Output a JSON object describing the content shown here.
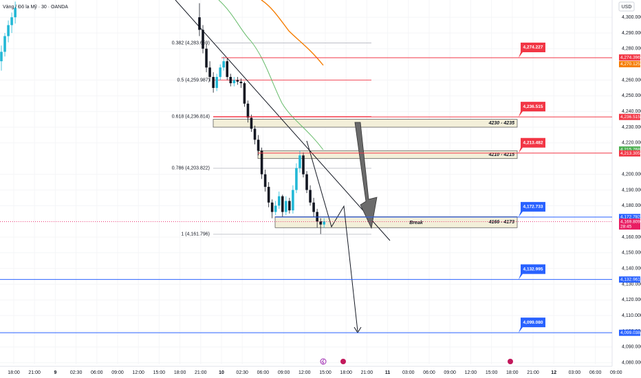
{
  "chart_data": {
    "type": "candlestick",
    "title": "Vàng / Đô la Mỹ · 30 · OANDA",
    "currency": "USD",
    "ylim": [
      4079,
      4311
    ],
    "yticks": [
      {
        "value": 4080,
        "label": "4,080.000"
      },
      {
        "value": 4090,
        "label": "4,090.000"
      },
      {
        "value": 4100,
        "label": "4,100.000"
      },
      {
        "value": 4110,
        "label": "4,110.000"
      },
      {
        "value": 4120,
        "label": "4,120.000"
      },
      {
        "value": 4130,
        "label": "4,130.000"
      },
      {
        "value": 4140,
        "label": "4,140.000"
      },
      {
        "value": 4150,
        "label": "4,150.000"
      },
      {
        "value": 4160,
        "label": "4,160.000"
      },
      {
        "value": 4180,
        "label": "4,180.000"
      },
      {
        "value": 4190,
        "label": "4,190.000"
      },
      {
        "value": 4200,
        "label": "4,200.000"
      },
      {
        "value": 4220,
        "label": "4,220.000"
      },
      {
        "value": 4230,
        "label": "4,230.000"
      },
      {
        "value": 4240,
        "label": "4,240.000"
      },
      {
        "value": 4250,
        "label": "4,250.000"
      },
      {
        "value": 4260,
        "label": "4,260.000"
      },
      {
        "value": 4280,
        "label": "4,280.000"
      },
      {
        "value": 4290,
        "label": "4,290.000"
      },
      {
        "value": 4300,
        "label": "4,300.000"
      }
    ],
    "categories": [
      "18:00",
      "21:00",
      "9",
      "02:30",
      "06:00",
      "09:00",
      "12:00",
      "15:00",
      "18:00",
      "21:00",
      "10",
      "02:30",
      "06:00",
      "09:00",
      "12:00",
      "15:00",
      "18:00",
      "21:00",
      "11",
      "03:00",
      "06:00",
      "09:00",
      "12:00",
      "15:00",
      "18:00",
      "21:00",
      "12",
      "03:00",
      "06:00",
      "09:00"
    ],
    "up_color": "#22b8d6",
    "down_color": "#131722",
    "candles_left": [
      [
        4272,
        4282,
        4266,
        4278
      ],
      [
        4278,
        4290,
        4275,
        4288
      ],
      [
        4288,
        4298,
        4284,
        4295
      ],
      [
        4295,
        4303,
        4290,
        4300
      ],
      [
        4300,
        4310,
        4296,
        4306
      ]
    ],
    "candles_right": [
      [
        4300,
        4309,
        4288,
        4292
      ],
      [
        4292,
        4295,
        4277,
        4280
      ],
      [
        4280,
        4283,
        4265,
        4268
      ],
      [
        4268,
        4272,
        4259,
        4262
      ],
      [
        4262,
        4265,
        4252,
        4255
      ],
      [
        4255,
        4264,
        4253,
        4262
      ],
      [
        4262,
        4270,
        4260,
        4268
      ],
      [
        4268,
        4275,
        4266,
        4272
      ],
      [
        4272,
        4274,
        4260,
        4262
      ],
      [
        4262,
        4264,
        4256,
        4258
      ],
      [
        4258,
        4262,
        4256,
        4260
      ],
      [
        4260,
        4262,
        4257,
        4259
      ],
      [
        4259,
        4261,
        4255,
        4258
      ],
      [
        4258,
        4259,
        4243,
        4245
      ],
      [
        4245,
        4247,
        4233,
        4236
      ],
      [
        4236,
        4238,
        4227,
        4229
      ],
      [
        4229,
        4231,
        4219,
        4222
      ],
      [
        4222,
        4225,
        4212,
        4215
      ],
      [
        4215,
        4217,
        4197,
        4200
      ],
      [
        4200,
        4203,
        4189,
        4192
      ],
      [
        4192,
        4195,
        4179,
        4182
      ],
      [
        4182,
        4184,
        4172,
        4176
      ],
      [
        4176,
        4183,
        4174,
        4180
      ],
      [
        4180,
        4189,
        4178,
        4186
      ],
      [
        4186,
        4187,
        4173,
        4176
      ],
      [
        4176,
        4186,
        4174,
        4183
      ],
      [
        4183,
        4185,
        4175,
        4177
      ],
      [
        4177,
        4193,
        4175,
        4190
      ],
      [
        4190,
        4207,
        4188,
        4204
      ],
      [
        4204,
        4215,
        4201,
        4212
      ],
      [
        4212,
        4214,
        4198,
        4200
      ],
      [
        4200,
        4202,
        4188,
        4190
      ],
      [
        4190,
        4193,
        4180,
        4182
      ],
      [
        4182,
        4185,
        4173,
        4176
      ],
      [
        4176,
        4178,
        4166,
        4170
      ],
      [
        4170,
        4172,
        4162,
        4168
      ],
      [
        4168,
        4172,
        4166,
        4170
      ]
    ],
    "fib_levels": [
      {
        "value": 4283.659,
        "label": "0.382 (4,283.659)",
        "color": "#787b86"
      },
      {
        "value": 4259.987,
        "label": "0.5 (4,259.987)",
        "color": "#f23645"
      },
      {
        "value": 4236.814,
        "label": "0.618 (4,236.814)",
        "color": "#f23645"
      },
      {
        "value": 4203.822,
        "label": "0.786 (4,203.822)",
        "color": "#787b86"
      },
      {
        "value": 4161.796,
        "label": "1 (4,161.796)",
        "color": "#787b86"
      }
    ],
    "zones": [
      {
        "low": 4230,
        "high": 4235,
        "label": "4230 - 4235"
      },
      {
        "low": 4210,
        "high": 4215,
        "label": "4210 - 4215"
      },
      {
        "low": 4166,
        "high": 4173,
        "label": "4166 - 4173"
      }
    ],
    "zone_note": "Break",
    "levels": [
      {
        "value": 4274.227,
        "label": "4,274.227",
        "color": "#f23645"
      },
      {
        "value": 4236.515,
        "label": "4,236.515",
        "color": "#f23645"
      },
      {
        "value": 4213.482,
        "label": "4,213.482",
        "color": "#f23645"
      },
      {
        "value": 4172.733,
        "label": "4,172.733",
        "color": "#2962ff"
      },
      {
        "value": 4132.995,
        "label": "4,132.995",
        "color": "#2962ff"
      },
      {
        "value": 4099.08,
        "label": "4,099.080",
        "color": "#2962ff"
      }
    ],
    "current_price": {
      "value": 4169.809,
      "label": "4,169.809",
      "color": "#e91e63",
      "countdown": "28:45"
    },
    "axis_tags": [
      {
        "value": 4274.396,
        "label": "4,274.396",
        "color": "#f23645"
      },
      {
        "value": 4270.125,
        "label": "4,270.125",
        "color": "#f57c00"
      },
      {
        "value": 4236.515,
        "label": "4,236.515",
        "color": "#f23645"
      },
      {
        "value": 4215.768,
        "label": "4,215.768",
        "color": "#4caf50"
      },
      {
        "value": 4213.305,
        "label": "4,213.305",
        "color": "#f23645"
      },
      {
        "value": 4172.782,
        "label": "4,172.782",
        "color": "#2962ff"
      },
      {
        "value": 4132.961,
        "label": "4,132.961",
        "color": "#2962ff"
      },
      {
        "value": 4099.038,
        "label": "4,099.038",
        "color": "#2962ff"
      }
    ]
  }
}
